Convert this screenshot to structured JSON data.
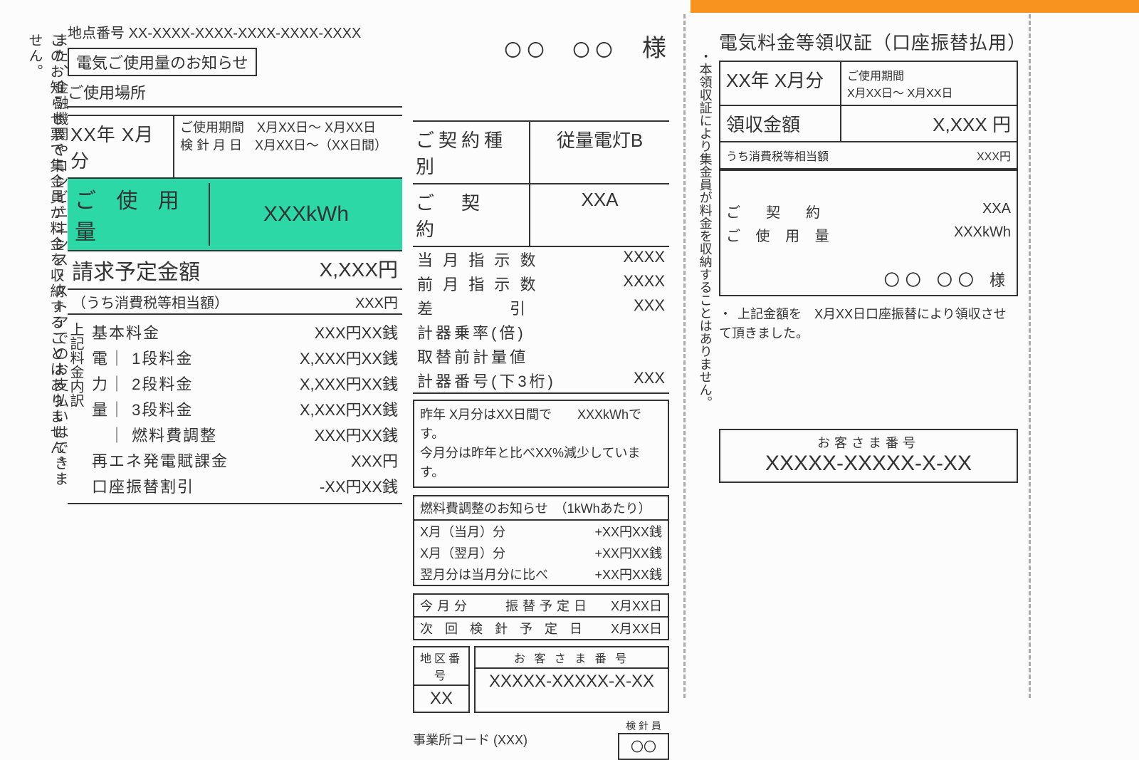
{
  "notes": {
    "left1": "また、金融機関やコンビニエンス・ストアでのお支払いはできません。",
    "left2": "このお知らせ票で集金員が料金を収納することはありません。"
  },
  "left": {
    "location_label": "地点番号",
    "location_number": "XX-XXXX-XXXX-XXXX-XXXX-XXXX",
    "title": "電気ご使用量のお知らせ",
    "place_label": "ご使用場所",
    "period_title": "XX年 X月分",
    "period_line1": "ご使用期間　X月XX日～ X月XX日",
    "period_line2": "検 針 月 日　X月XX日～（XX日間）",
    "usage_label": "ご 使 用 量",
    "usage_value": "XXXkWh",
    "billing_label": "請求予定金額",
    "billing_value": "X,XXX円",
    "tax_label": "（うち消費税等相当額）",
    "tax_value": "XXX円",
    "breakdown_side": "上記料金内訳",
    "bd": [
      {
        "l": "基本料金",
        "v": "XXX円XX銭"
      },
      {
        "l": "電｜ 1段料金",
        "v": "X,XXX円XX銭"
      },
      {
        "l": "力｜ 2段料金",
        "v": "X,XXX円XX銭"
      },
      {
        "l": "量｜ 3段料金",
        "v": "X,XXX円XX銭"
      },
      {
        "l": "　｜ 燃料費調整",
        "v": "XXX円XX銭"
      },
      {
        "l": "再エネ発電賦課金",
        "v": "XXX円"
      },
      {
        "l": "口座振替割引",
        "v": "-XX円XX銭"
      }
    ]
  },
  "mid": {
    "name_suffix": "様",
    "name_circles": "〇〇　〇〇",
    "contract": [
      {
        "l": "ご契約種別",
        "v": "従量電灯B"
      },
      {
        "l": "ご　契　約",
        "v": "XXA"
      }
    ],
    "meter": [
      {
        "l": "当 月 指 示 数",
        "v": "XXXX"
      },
      {
        "l": "前 月 指 示 数",
        "v": "XXXX"
      },
      {
        "l": "差　　　　引",
        "v": "XXX"
      },
      {
        "l": "計器乗率(倍)",
        "v": ""
      },
      {
        "l": "取替前計量値",
        "v": ""
      },
      {
        "l": "計器番号(下3桁)",
        "v": "XXX"
      }
    ],
    "compare_line1": "昨年 X月分はXX日間で　　XXXkWhです。",
    "compare_line2": "今月分は昨年と比べXX%減少しています。",
    "fuel_header": "燃料費調整のお知らせ　（1kWhあたり）",
    "fuel_rows": [
      {
        "l": "X月（当月）分",
        "v": "+XX円XX銭"
      },
      {
        "l": "X月（翌月）分",
        "v": "+XX円XX銭"
      },
      {
        "l": "翌月分は当月分に比べ",
        "v": "+XX円XX銭"
      }
    ],
    "sched": [
      {
        "l": "今月分　　振替予定日",
        "v": "X月XX日"
      },
      {
        "l": "次 回 検 針 予 定 日",
        "v": "X月XX日"
      }
    ],
    "district_hdr": "地区番号",
    "district_val": "XX",
    "customer_hdr": "お 客 さ ま 番 号",
    "customer_val": "XXXXX-XXXXX-X-XX",
    "office_label": "事業所コード (XXX)",
    "reader_label": "検 針 員",
    "reader_val": "〇〇"
  },
  "stub": {
    "side_note": "・本領収証により集金員が料金を収納することはありません。",
    "title": "電気料金等領収証（口座振替払用）",
    "period": "XX年 X月分",
    "usage_period_l": "ご使用期間",
    "usage_period_v": "X月XX日～ X月XX日",
    "amount_l": "領収金額",
    "amount_v": "X,XXX 円",
    "tax_l": "うち消費税等相当額",
    "tax_v": "XXX円",
    "contract_l": "ご　契　約",
    "contract_v": "XXA",
    "usage_l": "ご 使 用 量",
    "usage_v": "XXXkWh",
    "name": "〇〇 〇〇 様",
    "note2": "上記金額を　X月XX日口座振替により領収させて頂きました。",
    "cust_hdr": "お客さま番号",
    "cust_val": "XXXXX-XXXXX-X-XX"
  }
}
